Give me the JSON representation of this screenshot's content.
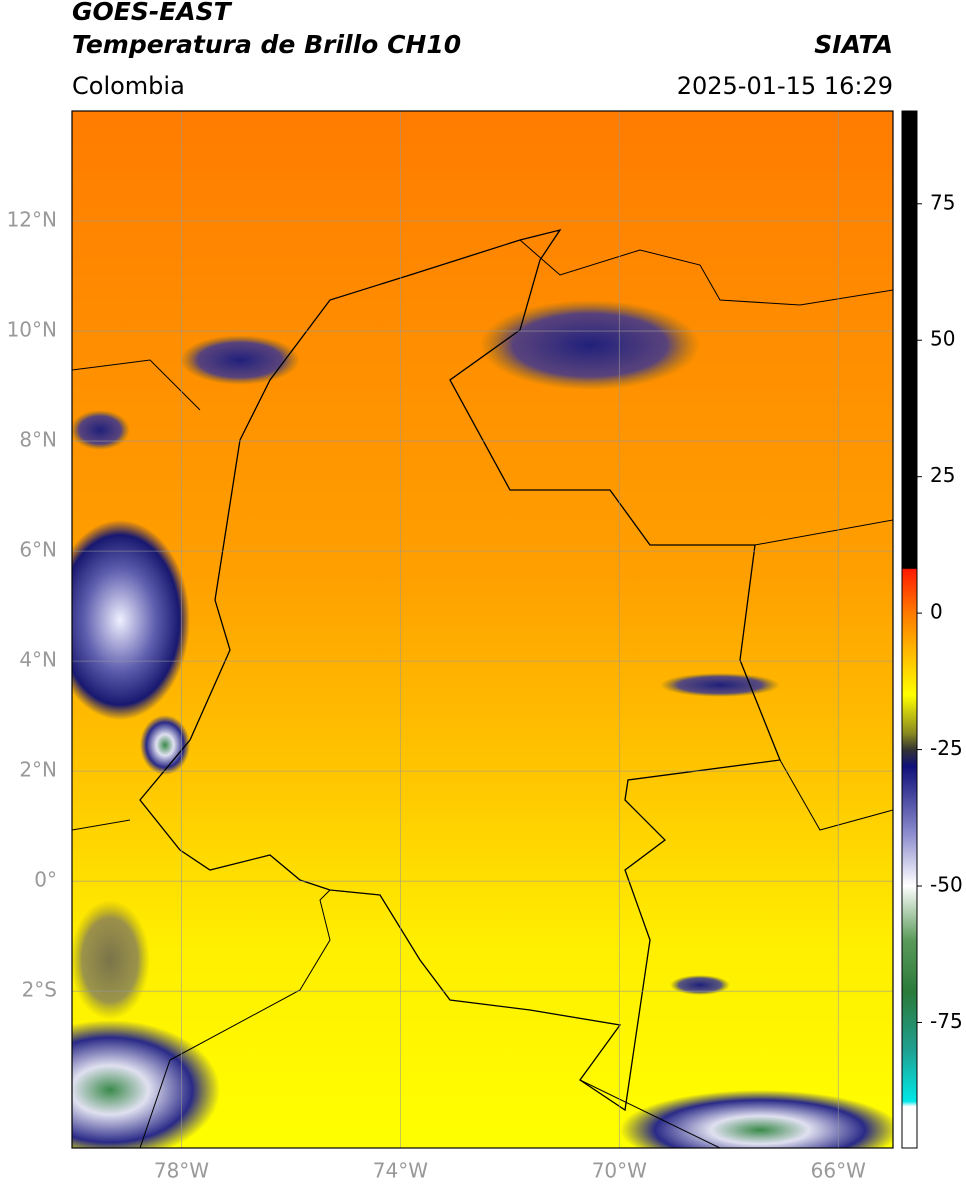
{
  "header": {
    "title": "GOES-EAST",
    "subtitle": "Temperatura de Brillo CH10",
    "source": "SIATA",
    "region": "Colombia",
    "timestamp": "2025-01-15 16:29"
  },
  "map": {
    "xlim": [
      -80,
      -65
    ],
    "ylim": [
      -4.85,
      14
    ],
    "xticks": [
      {
        "value": -78,
        "label": "78°W"
      },
      {
        "value": -74,
        "label": "74°W"
      },
      {
        "value": -70,
        "label": "70°W"
      },
      {
        "value": -66,
        "label": "66°W"
      }
    ],
    "yticks": [
      {
        "value": -2,
        "label": "2°S"
      },
      {
        "value": 0,
        "label": "0°"
      },
      {
        "value": 2,
        "label": "2°N"
      },
      {
        "value": 4,
        "label": "4°N"
      },
      {
        "value": 6,
        "label": "6°N"
      },
      {
        "value": 8,
        "label": "8°N"
      },
      {
        "value": 10,
        "label": "10°N"
      },
      {
        "value": 12,
        "label": "12°N"
      }
    ],
    "grid": true
  },
  "colorbar": {
    "ylim": [
      -98,
      92
    ],
    "yticks": [
      -75,
      -50,
      -25,
      0,
      25,
      50,
      75
    ]
  }
}
